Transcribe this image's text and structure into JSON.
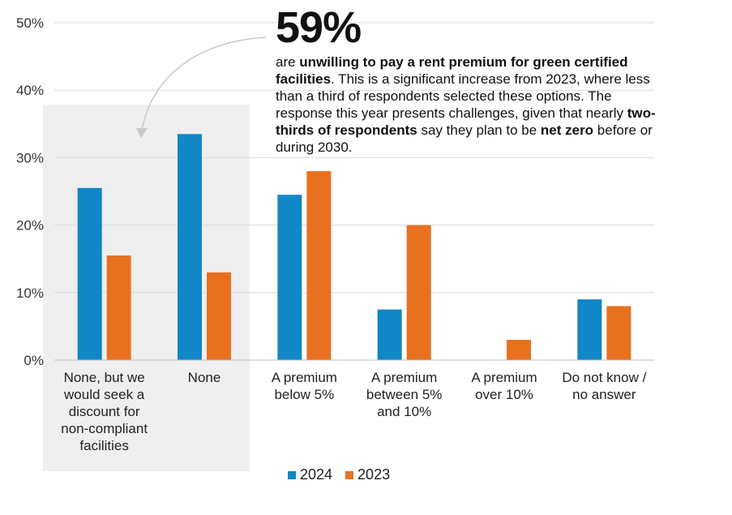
{
  "chart_data": {
    "type": "bar",
    "categories": [
      [
        "None, but we",
        "would seek a",
        "discount for",
        "non-compliant",
        "facilities"
      ],
      [
        "None"
      ],
      [
        "A premium",
        "below 5%"
      ],
      [
        "A premium",
        "between 5%",
        "and 10%"
      ],
      [
        "A premium",
        "over 10%"
      ],
      [
        "Do not know /",
        "no answer"
      ]
    ],
    "series": [
      {
        "name": "2024",
        "color": "#1187C8",
        "values": [
          25.5,
          33.5,
          24.5,
          7.5,
          0,
          9
        ]
      },
      {
        "name": "2023",
        "color": "#E8711F",
        "values": [
          15.5,
          13,
          28,
          20,
          3,
          8
        ]
      }
    ],
    "ylim": [
      0,
      50
    ],
    "yticks": [
      "0%",
      "10%",
      "20%",
      "30%",
      "40%",
      "50%"
    ],
    "grid": true,
    "highlighted_categories": [
      0,
      1
    ],
    "legend_position": "bottom"
  },
  "callout": {
    "big_number": "59%",
    "segments": [
      {
        "text": "are ",
        "bold": false
      },
      {
        "text": "unwilling to pay a rent premium for green certified facilities",
        "bold": true
      },
      {
        "text": ". This is a significant increase from 2023, where less than a third of respondents selected these options. The response this year presents challenges, given that nearly ",
        "bold": false
      },
      {
        "text": "two-thirds of respondents",
        "bold": true
      },
      {
        "text": " say they plan to be ",
        "bold": false
      },
      {
        "text": "net zero",
        "bold": true
      },
      {
        "text": " before or during 2030.",
        "bold": false
      }
    ]
  }
}
